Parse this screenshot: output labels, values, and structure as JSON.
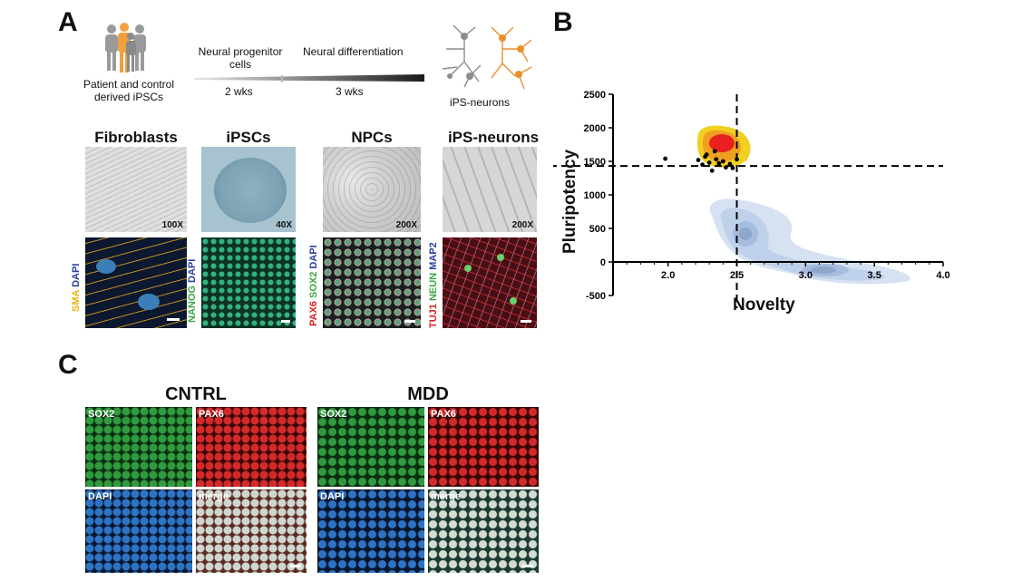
{
  "panelA": {
    "letter": "A",
    "patients_label_l1": "Patient and control",
    "patients_label_l2": "derived iPSCs",
    "stage1_l1": "Neural progenitor",
    "stage1_l2": "cells",
    "stage2": "Neural differentiation",
    "dur1": "2 wks",
    "dur2": "3 wks",
    "neurons_label": "iPS-neurons",
    "columns": [
      {
        "title": "Fibroblasts",
        "mag": "100X"
      },
      {
        "title": "iPSCs",
        "mag": "40X"
      },
      {
        "title": "NPCs",
        "mag": "200X"
      },
      {
        "title": "iPS-neurons",
        "mag": "200X"
      }
    ],
    "stain_labels": [
      [
        {
          "text": "SMA",
          "color": "#e8b400"
        },
        {
          "text": " DAPI",
          "color": "#2a3fa0"
        }
      ],
      [
        {
          "text": "NANOG",
          "color": "#3aa640"
        },
        {
          "text": " DAPI",
          "color": "#2a3fa0"
        }
      ],
      [
        {
          "text": "PAX6",
          "color": "#d62020"
        },
        {
          "text": " SOX2",
          "color": "#3aa640"
        },
        {
          "text": " DAPI",
          "color": "#2a3fa0"
        }
      ],
      [
        {
          "text": "TUJ1",
          "color": "#d62020"
        },
        {
          "text": " NEUN",
          "color": "#3aa640"
        },
        {
          "text": " MAP2",
          "color": "#2a3fa0"
        }
      ]
    ]
  },
  "panelB": {
    "letter": "B",
    "chart_data": {
      "type": "contour-scatter",
      "xlabel": "Novelty",
      "ylabel": "Pluripotency",
      "xlim": [
        1.6,
        4.0
      ],
      "ylim": [
        -500,
        2500
      ],
      "x_ticks": [
        "2.0",
        "2.5",
        "3.0",
        "3.5",
        "4.0"
      ],
      "x_tick_values": [
        2.0,
        2.5,
        3.0,
        3.5,
        4.0
      ],
      "y_ticks": [
        "2500",
        "2000",
        "1500",
        "1000",
        "500",
        "0",
        "-500"
      ],
      "y_tick_values": [
        2500,
        2000,
        1500,
        1000,
        500,
        0,
        -500
      ],
      "threshold_x": 2.5,
      "threshold_y": 1430,
      "points": [
        {
          "x": 1.98,
          "y": 1540
        },
        {
          "x": 2.22,
          "y": 1520
        },
        {
          "x": 2.25,
          "y": 1450
        },
        {
          "x": 2.27,
          "y": 1570
        },
        {
          "x": 2.3,
          "y": 1480
        },
        {
          "x": 2.32,
          "y": 1360
        },
        {
          "x": 2.34,
          "y": 1650
        },
        {
          "x": 2.35,
          "y": 1530
        },
        {
          "x": 2.37,
          "y": 1470
        },
        {
          "x": 2.4,
          "y": 1500
        },
        {
          "x": 2.42,
          "y": 1410
        },
        {
          "x": 2.45,
          "y": 1460
        },
        {
          "x": 2.47,
          "y": 1400
        },
        {
          "x": 2.5,
          "y": 1530
        },
        {
          "x": 2.28,
          "y": 1600
        }
      ]
    }
  },
  "panelC": {
    "letter": "C",
    "groups": [
      {
        "title": "CNTRL"
      },
      {
        "title": "MDD"
      }
    ],
    "channel_labels": [
      "SOX2",
      "PAX6",
      "DAPI",
      "merge"
    ]
  }
}
